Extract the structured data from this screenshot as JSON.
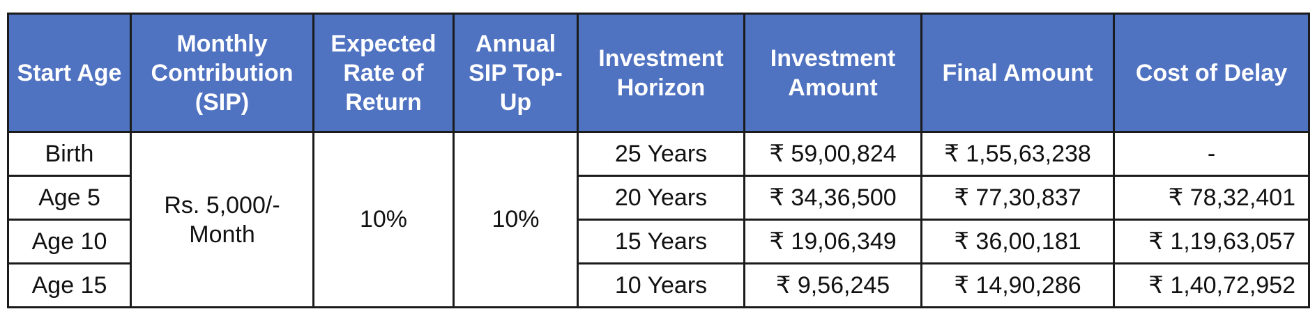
{
  "headers": [
    "Start Age",
    "Monthly Contribution (SIP)",
    "Expected Rate of Return",
    "Annual SIP Top-Up",
    "Investment Horizon",
    "Investment Amount",
    "Final Amount",
    "Cost of Delay"
  ],
  "merged": {
    "monthly_contribution": "Rs. 5,000/- Month",
    "expected_return": "10%",
    "annual_topup": "10%"
  },
  "rows": [
    {
      "start_age": "Birth",
      "horizon": "25 Years",
      "investment_amount": "₹ 59,00,824",
      "final_amount": "₹ 1,55,63,238",
      "cost_of_delay": "-"
    },
    {
      "start_age": "Age 5",
      "horizon": "20 Years",
      "investment_amount": "₹ 34,36,500",
      "final_amount": "₹ 77,30,837",
      "cost_of_delay": "₹ 78,32,401"
    },
    {
      "start_age": "Age 10",
      "horizon": "15 Years",
      "investment_amount": "₹ 19,06,349",
      "final_amount": "₹ 36,00,181",
      "cost_of_delay": "₹ 1,19,63,057"
    },
    {
      "start_age": "Age 15",
      "horizon": "10 Years",
      "investment_amount": "₹ 9,56,245",
      "final_amount": "₹ 14,90,286",
      "cost_of_delay": "₹ 1,40,72,952"
    }
  ],
  "colors": {
    "header_bg": "#4f72c1",
    "header_text": "#ffffff",
    "border": "#1b1b1b"
  }
}
